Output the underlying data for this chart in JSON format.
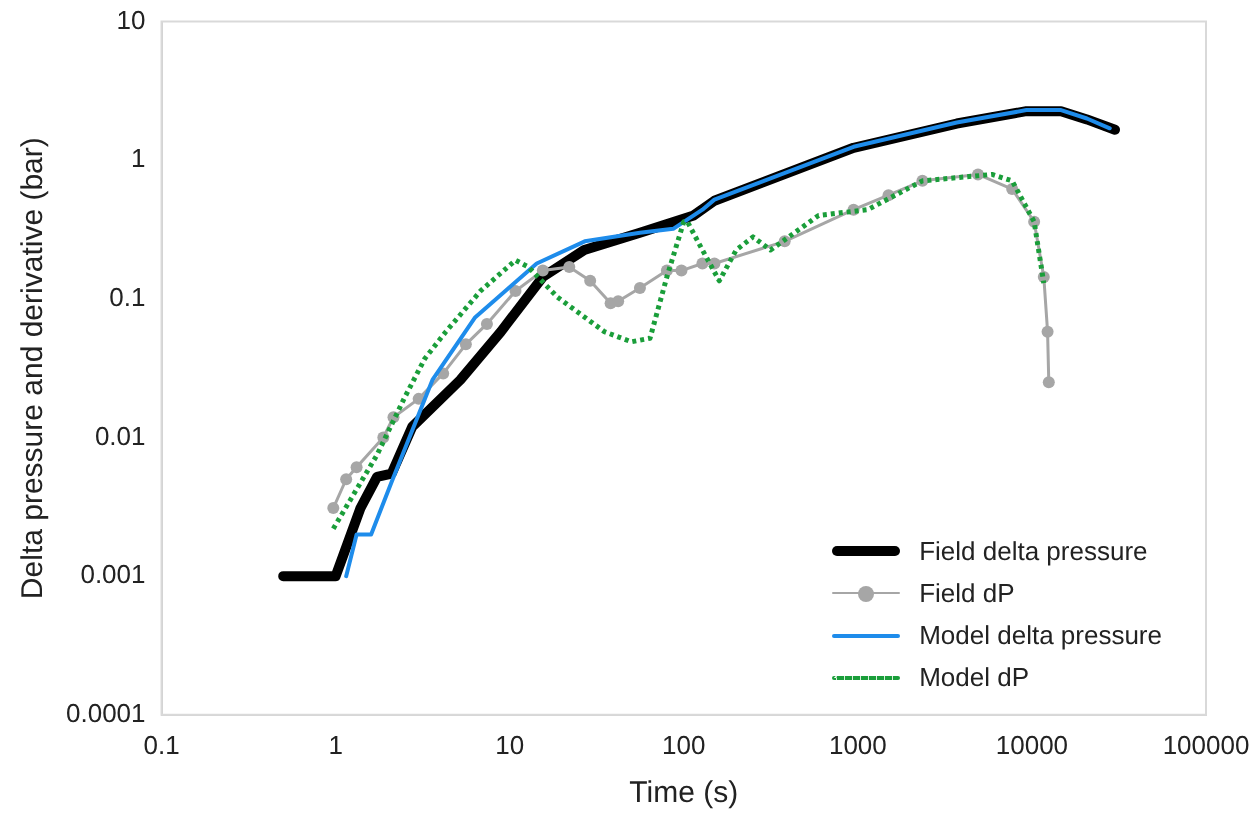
{
  "chart_data": {
    "type": "line",
    "xlabel": "Time (s)",
    "ylabel": "Delta pressure and derivative (bar)",
    "log": "xy",
    "grid": false,
    "legend": "bottom right",
    "xlim": [
      0.1,
      100000
    ],
    "xticks": [
      0.1,
      1,
      10,
      100,
      1000,
      10000,
      100000
    ],
    "ylim": [
      0.0001,
      10
    ],
    "yticks": [
      0.0001,
      0.001,
      0.01,
      0.1,
      1,
      10
    ],
    "series": [
      {
        "name": "Field delta pressure",
        "color": "#000000",
        "marker": "none",
        "line_style": "solid",
        "x": [
          0.5,
          1,
          1.39,
          1.73,
          2.1,
          2.76,
          5.2,
          8.9,
          15.5,
          26.8,
          56,
          114,
          150,
          945,
          3700,
          9300,
          14700,
          20700,
          30000
        ],
        "values": [
          0.001,
          0.001,
          0.0031,
          0.0052,
          0.0055,
          0.012,
          0.026,
          0.058,
          0.144,
          0.225,
          0.3,
          0.4,
          0.51,
          1.23,
          1.84,
          2.26,
          2.26,
          1.97,
          1.66
        ]
      },
      {
        "name": "Field dP",
        "color": "#a6a6a6",
        "marker": "circle",
        "line_style": "solid",
        "x": [
          0.97,
          1.15,
          1.32,
          1.88,
          2.15,
          3,
          4.15,
          5.6,
          7.4,
          10.8,
          15.5,
          22,
          29,
          38,
          42,
          56,
          80,
          97,
          128,
          150,
          380,
          945,
          1500,
          2350,
          4900,
          7700,
          10300,
          11700,
          12300,
          12500
        ],
        "values": [
          0.0031,
          0.005,
          0.0061,
          0.01,
          0.014,
          0.019,
          0.029,
          0.047,
          0.066,
          0.114,
          0.16,
          0.17,
          0.135,
          0.093,
          0.096,
          0.12,
          0.16,
          0.16,
          0.18,
          0.18,
          0.26,
          0.44,
          0.56,
          0.71,
          0.79,
          0.62,
          0.36,
          0.144,
          0.058,
          0.025
        ]
      },
      {
        "name": "Model delta pressure",
        "color": "#1e8ceb",
        "marker": "none",
        "line_style": "solid",
        "x": [
          1.15,
          1.32,
          1.6,
          2.1,
          3.6,
          6.3,
          14.3,
          27,
          56,
          87,
          128,
          150,
          945,
          3700,
          9300,
          14700,
          20700,
          28000
        ],
        "values": [
          0.001,
          0.002,
          0.002,
          0.0048,
          0.026,
          0.073,
          0.18,
          0.26,
          0.3,
          0.32,
          0.44,
          0.52,
          1.25,
          1.87,
          2.3,
          2.3,
          2.0,
          1.7
        ]
      },
      {
        "name": "Model dP",
        "color": "#1a9e3a",
        "marker": "none",
        "line_style": "dotted",
        "x": [
          0.97,
          1.73,
          2.47,
          3.25,
          4.3,
          6.8,
          10.8,
          12.8,
          18.8,
          35,
          50,
          64,
          80,
          100,
          105,
          128,
          160,
          200,
          250,
          315,
          595,
          1140,
          2350,
          5900,
          7700,
          10300,
          11700
        ],
        "values": [
          0.0022,
          0.0075,
          0.019,
          0.037,
          0.058,
          0.114,
          0.19,
          0.17,
          0.103,
          0.058,
          0.049,
          0.052,
          0.144,
          0.36,
          0.36,
          0.225,
          0.135,
          0.225,
          0.28,
          0.225,
          0.4,
          0.44,
          0.71,
          0.79,
          0.71,
          0.36,
          0.13
        ]
      }
    ]
  }
}
